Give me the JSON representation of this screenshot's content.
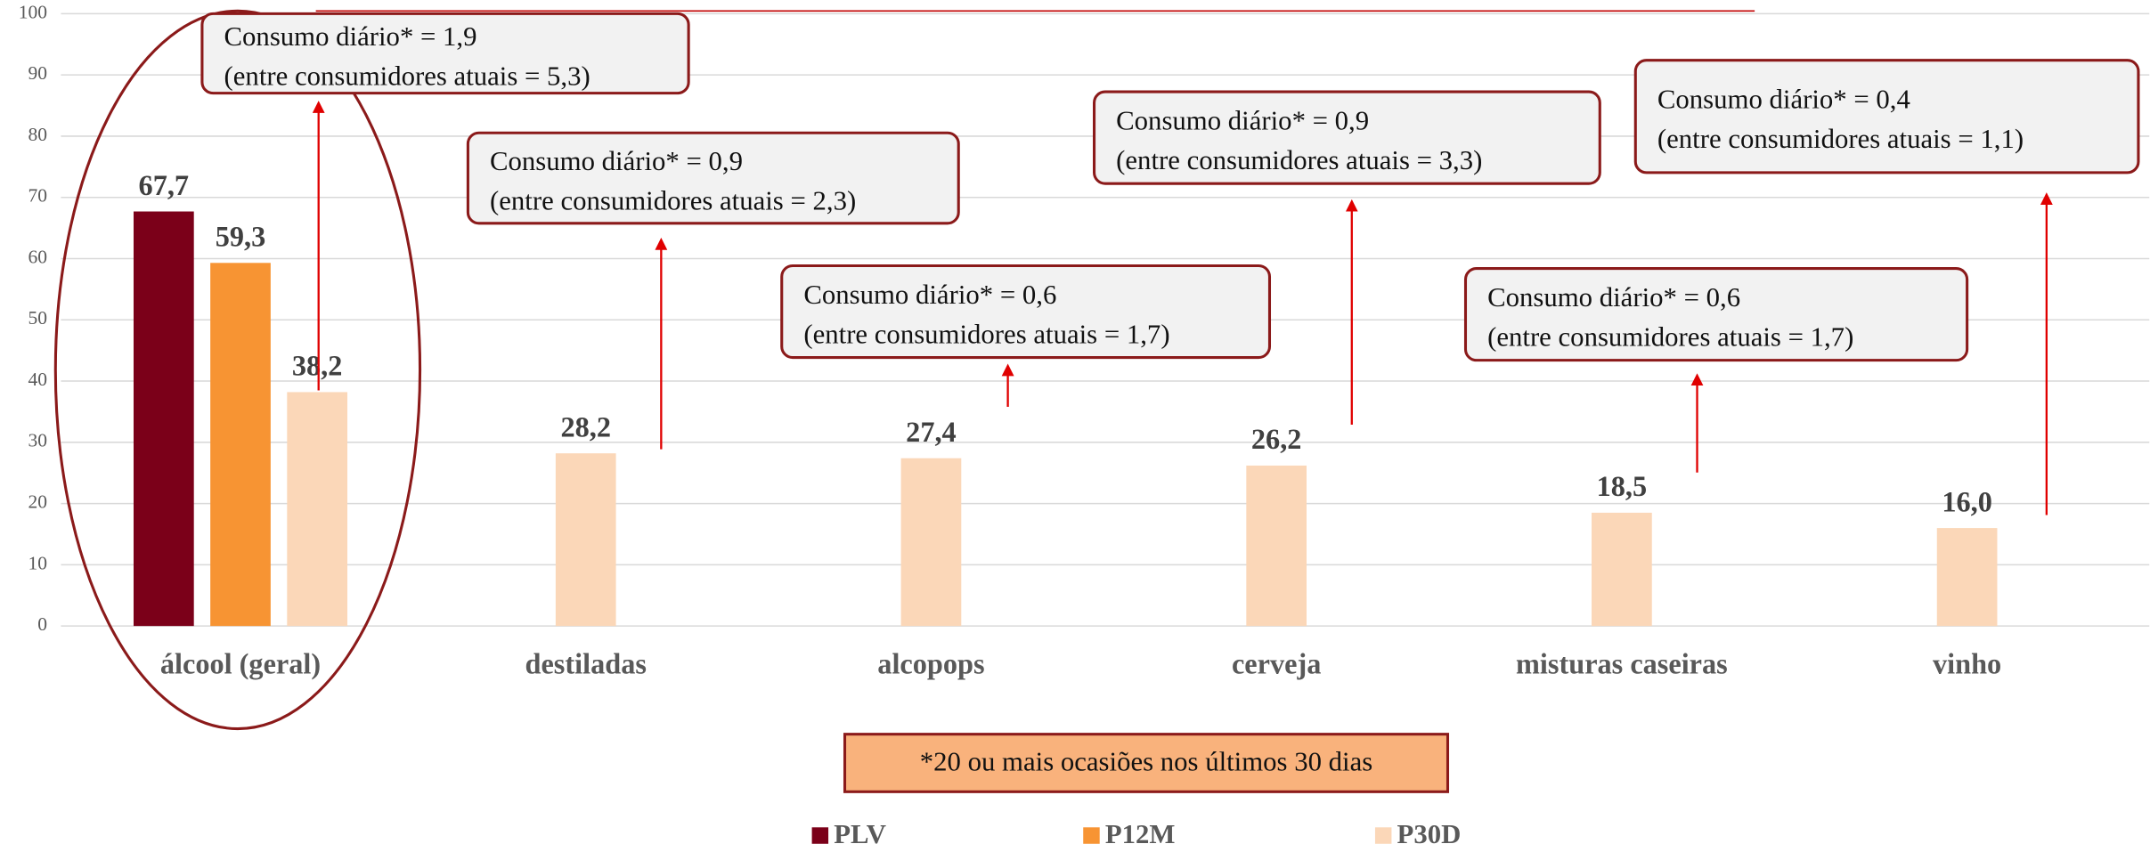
{
  "chart_data": {
    "type": "bar",
    "categories": [
      "álcool (geral)",
      "destiladas",
      "alcopops",
      "cerveja",
      "misturas caseiras",
      "vinho"
    ],
    "series": [
      {
        "name": "PLV",
        "color": "#7b0019",
        "values": [
          67.7,
          null,
          null,
          null,
          null,
          null
        ],
        "value_labels": [
          "67,7",
          null,
          null,
          null,
          null,
          null
        ]
      },
      {
        "name": "P12M",
        "color": "#f79433",
        "values": [
          59.3,
          null,
          null,
          null,
          null,
          null
        ],
        "value_labels": [
          "59,3",
          null,
          null,
          null,
          null,
          null
        ]
      },
      {
        "name": "P30D",
        "color": "#fbd7b8",
        "values": [
          38.2,
          28.2,
          27.4,
          26.2,
          18.5,
          16.0
        ],
        "value_labels": [
          "38,2",
          "28,2",
          "27,4",
          "26,2",
          "18,5",
          "16,0"
        ]
      }
    ],
    "ylim": [
      0,
      100
    ],
    "yticks": [
      0,
      10,
      20,
      30,
      40,
      50,
      60,
      70,
      80,
      90,
      100
    ],
    "grid": true,
    "annotations": [
      {
        "lines": [
          "Consumo diário* = 1,9",
          "(entre consumidores atuais = 5,3)"
        ]
      },
      {
        "lines": [
          "Consumo diário* = 0,9",
          "(entre consumidores atuais = 2,3)"
        ]
      },
      {
        "lines": [
          "Consumo diário* = 0,6",
          "(entre consumidores atuais = 1,7)"
        ]
      },
      {
        "lines": [
          "Consumo diário* = 0,9",
          "(entre consumidores atuais = 3,3)"
        ]
      },
      {
        "lines": [
          "Consumo diário* = 0,6",
          "(entre consumidores atuais = 1,7)"
        ]
      },
      {
        "lines": [
          "Consumo diário* = 0,4",
          "(entre consumidores atuais = 1,1)"
        ]
      }
    ],
    "footnote": "*20 ou mais ocasiões nos últimos 30 dias"
  }
}
